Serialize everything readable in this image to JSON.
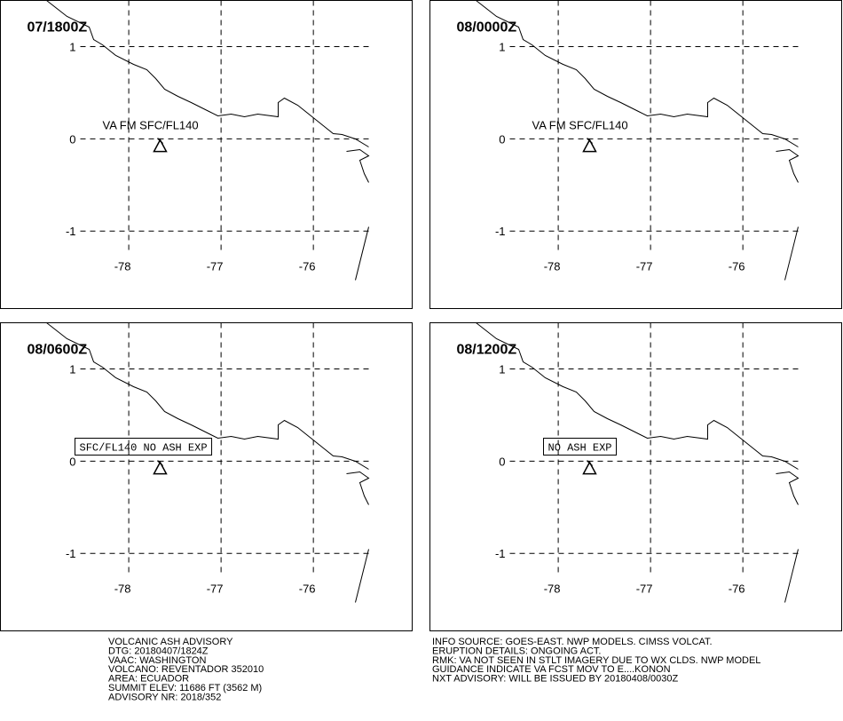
{
  "panels": [
    {
      "time": "07/1800Z",
      "annotation": "VA FM SFC/FL140",
      "boxed": false
    },
    {
      "time": "08/0000Z",
      "annotation": "VA FM SFC/FL140",
      "boxed": false
    },
    {
      "time": "08/0600Z",
      "annotation": "SFC/FL140 NO ASH EXP",
      "boxed": true
    },
    {
      "time": "08/1200Z",
      "annotation": "NO ASH EXP",
      "boxed": true
    }
  ],
  "xlim": [
    -79.39,
    -74.92
  ],
  "ylim": [
    -1.85,
    1.5
  ],
  "lat_ticks": [
    1,
    0,
    -1
  ],
  "lon_ticks": [
    -78,
    -77,
    -76
  ],
  "volcano": {
    "lon": -77.66,
    "lat": -0.08
  },
  "advisory_left": [
    "VOLCANIC ASH ADVISORY",
    "DTG: 20180407/1824Z",
    "VAAC: WASHINGTON",
    "VOLCANO: REVENTADOR 352010",
    "AREA: ECUADOR",
    "SUMMIT ELEV: 11686 FT (3562 M)",
    "ADVISORY NR: 2018/352"
  ],
  "advisory_right": [
    "INFO SOURCE: GOES-EAST. NWP MODELS. CIMSS VOLCAT.",
    "ERUPTION DETAILS: ONGOING ACT.",
    "RMK: VA NOT SEEN IN STLT IMAGERY DUE TO WX CLDS. NWP MODEL",
    "GUIDANCE INDICATE VA FCST MOV TO E....KONON",
    "NXT ADVISORY: WILL BE ISSUED BY 20180408/0030Z"
  ]
}
